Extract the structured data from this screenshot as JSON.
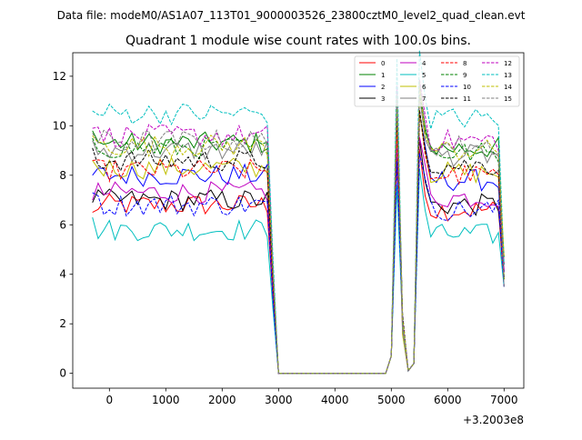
{
  "chart_data": {
    "type": "line",
    "suptitle": "Data file: modeM0/AS1A07_113T01_9000003526_23800cztM0_level2_quad_clean.evt",
    "title": "Quadrant 1 module wise count rates with 100.0s bins.",
    "xlabel": "",
    "ylabel": "",
    "x_offset_label": "+3.2003e8",
    "xlim": [
      -650,
      7350
    ],
    "ylim": [
      -0.6,
      12.95
    ],
    "x_ticks": [
      0,
      1000,
      2000,
      3000,
      4000,
      5000,
      6000,
      7000
    ],
    "y_ticks": [
      0,
      2,
      4,
      6,
      8,
      10,
      12
    ],
    "legend_position": "top-right",
    "series": [
      {
        "name": "0",
        "color": "#ff0000",
        "dash": "solid",
        "base": 6.8,
        "gap_low": 0.0,
        "start": 6.5
      },
      {
        "name": "1",
        "color": "#008000",
        "dash": "solid",
        "base": 9.3,
        "gap_low": 0.0,
        "start": 9.8
      },
      {
        "name": "2",
        "color": "#0000ff",
        "dash": "solid",
        "base": 8.0,
        "gap_low": 0.0,
        "start": 8.0
      },
      {
        "name": "3",
        "color": "#000000",
        "dash": "solid",
        "base": 7.0,
        "gap_low": 0.0,
        "start": 6.9
      },
      {
        "name": "4",
        "color": "#bf00bf",
        "dash": "solid",
        "base": 7.3,
        "gap_low": 0.0,
        "start": 7.0
      },
      {
        "name": "5",
        "color": "#00bfbf",
        "dash": "solid",
        "base": 5.8,
        "gap_low": 0.0,
        "start": 6.3
      },
      {
        "name": "6",
        "color": "#bfbf00",
        "dash": "solid",
        "base": 8.3,
        "gap_low": 0.0,
        "start": 8.6
      },
      {
        "name": "7",
        "color": "#808080",
        "dash": "solid",
        "base": 9.0,
        "gap_low": 0.0,
        "start": 9.4
      },
      {
        "name": "8",
        "color": "#ff0000",
        "dash": "dashed",
        "base": 8.2,
        "gap_low": 0.0,
        "start": 8.6
      },
      {
        "name": "9",
        "color": "#008000",
        "dash": "dashed",
        "base": 9.1,
        "gap_low": 0.0,
        "start": 9.5
      },
      {
        "name": "10",
        "color": "#0000ff",
        "dash": "dashed",
        "base": 6.8,
        "gap_low": 0.0,
        "start": 7.3
      },
      {
        "name": "11",
        "color": "#000000",
        "dash": "dashed",
        "base": 8.6,
        "gap_low": 0.0,
        "start": 9.1
      },
      {
        "name": "12",
        "color": "#bf00bf",
        "dash": "dashed",
        "base": 9.6,
        "gap_low": 0.0,
        "start": 9.9
      },
      {
        "name": "13",
        "color": "#00bfbf",
        "dash": "dashed",
        "base": 10.5,
        "gap_low": 0.0,
        "start": 10.6
      },
      {
        "name": "14",
        "color": "#bfbf00",
        "dash": "dashed",
        "base": 9.2,
        "gap_low": 0.0,
        "start": 9.6
      },
      {
        "name": "15",
        "color": "#808080",
        "dash": "dashed",
        "base": 9.4,
        "gap_low": 0.0,
        "start": 9.7
      }
    ],
    "time_profile": {
      "x_start": -300,
      "x_step": 100,
      "n_points": 74,
      "segments_note": "active -300..2800, drop to 0 at 3000, zero until 4900, spikes near 5100 and 5500, active 5600..7000"
    }
  }
}
